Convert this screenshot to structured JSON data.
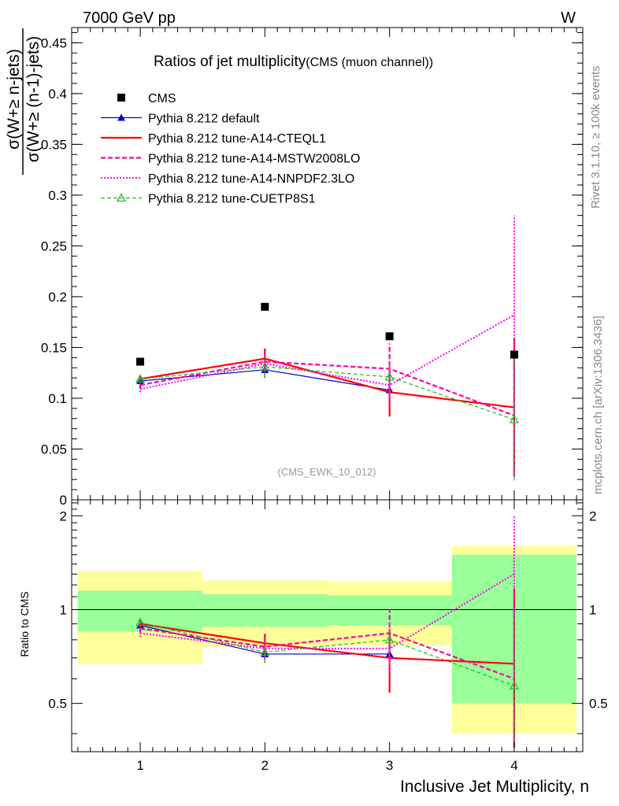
{
  "header": {
    "energy": "7000 GeV pp",
    "process": "W",
    "rivet_label": "Rivet 3.1.10, ≥ 100k events",
    "mcplots_label": "mcplots.cern.ch [arXiv:1306.3436]",
    "analysis_id": "(CMS_EWK_10_012)"
  },
  "colors": {
    "cms": "#000000",
    "default": "#0000cc",
    "cteql1": "#ff0000",
    "mstw": "#ff00aa",
    "nnpdf": "#ff00ff",
    "cuetp": "#22bb22",
    "band_inner": "#99ff99",
    "band_outer": "#ffff99"
  },
  "chart_data": {
    "type": "line",
    "title": "Ratios of jet multiplicity",
    "subtitle": "(CMS (muon channel))",
    "ylabel_top": "σ(W+≥ n-jets)",
    "ylabel_bottom": "σ(W+≥ (n-1)-jets)",
    "xlabel": "Inclusive Jet Multiplicity, n",
    "ratio_ylabel": "Ratio to CMS",
    "xlim": [
      0.45,
      4.55
    ],
    "ylim": [
      0,
      0.465
    ],
    "ratio_ylim": [
      0.35,
      2.25
    ],
    "x_ticks": [
      "1",
      "2",
      "3",
      "4"
    ],
    "y_ticks": [
      "0",
      "0.05",
      "0.1",
      "0.15",
      "0.2",
      "0.25",
      "0.3",
      "0.35",
      "0.4",
      "0.45"
    ],
    "ratio_ticks": [
      "0.5",
      "1",
      "2"
    ],
    "x": [
      1,
      2,
      3,
      4
    ],
    "cms": {
      "name": "CMS",
      "values": [
        0.136,
        0.19,
        0.161,
        0.143
      ],
      "rel_err_inner": [
        0.15,
        0.12,
        0.11,
        0.5
      ],
      "rel_err_outer": [
        0.33,
        0.24,
        0.23,
        0.6
      ]
    },
    "series": [
      {
        "name": "Pythia 8.212 default",
        "key": "default",
        "values": [
          0.117,
          0.128,
          0.108,
          null
        ],
        "errors": [
          0.003,
          0.008,
          0.015,
          null
        ],
        "ratio": [
          0.89,
          0.72,
          0.72,
          null
        ]
      },
      {
        "name": "Pythia 8.212 tune-A14-CTEQL1",
        "key": "cteql1",
        "values": [
          0.119,
          0.139,
          0.106,
          0.091
        ],
        "errors": [
          0.003,
          0.01,
          0.024,
          0.068
        ],
        "ratio": [
          0.9,
          0.78,
          0.7,
          0.67
        ]
      },
      {
        "name": "Pythia 8.212 tune-A14-MSTW2008LO",
        "key": "mstw",
        "values": [
          0.113,
          0.136,
          0.129,
          0.083
        ],
        "errors": [
          0.003,
          0.01,
          0.025,
          0.06
        ],
        "ratio": [
          0.87,
          0.76,
          0.84,
          0.6
        ]
      },
      {
        "name": "Pythia 8.212 tune-A14-NNPDF2.3LO",
        "key": "nnpdf",
        "values": [
          0.109,
          0.134,
          0.113,
          0.182
        ],
        "errors": [
          0.003,
          0.01,
          0.02,
          0.098
        ],
        "ratio": [
          0.84,
          0.75,
          0.75,
          1.3
        ]
      },
      {
        "name": "Pythia 8.212 tune-CUETP8S1",
        "key": "cuetp",
        "values": [
          0.119,
          0.131,
          0.121,
          0.079
        ],
        "errors": [
          0.003,
          0.01,
          0.02,
          0.06
        ],
        "ratio": [
          0.91,
          0.73,
          0.8,
          0.57
        ]
      }
    ]
  }
}
